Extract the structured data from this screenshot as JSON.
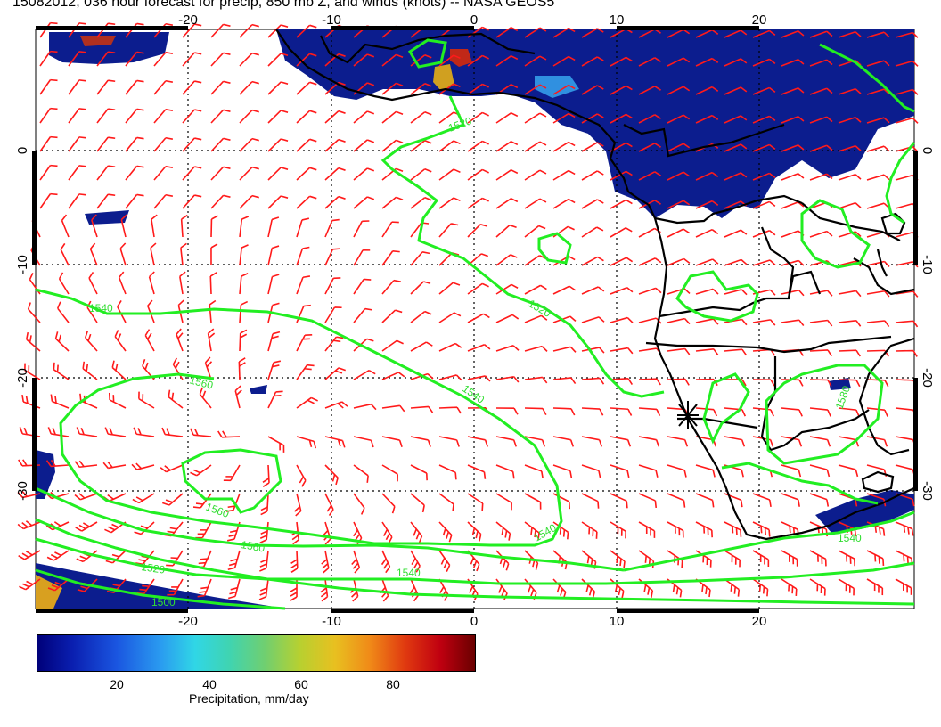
{
  "title": "15082012, 036 hour forecast for precip, 850 mb Z, and winds (knots) -- NASA GEOS5",
  "map": {
    "lon_ticks": [
      "-20",
      "-10",
      "0",
      "10",
      "20"
    ],
    "lat_ticks": [
      "0",
      "-10",
      "-20",
      "-30"
    ],
    "contour_labels": [
      "1520",
      "1520",
      "1540",
      "1540",
      "1560",
      "1560",
      "1560",
      "1540",
      "1540",
      "1520",
      "1540",
      "1580",
      "1500"
    ],
    "colors": {
      "contour": "#22ee22",
      "wind_barb": "#ff1a1a",
      "land_outline": "#000000",
      "precip_low": "#0a1a8a",
      "precip_high": "#8a0000"
    }
  },
  "colorbar": {
    "ticks": [
      "20",
      "40",
      "60",
      "80"
    ],
    "label": "Precipitation, mm/day"
  }
}
